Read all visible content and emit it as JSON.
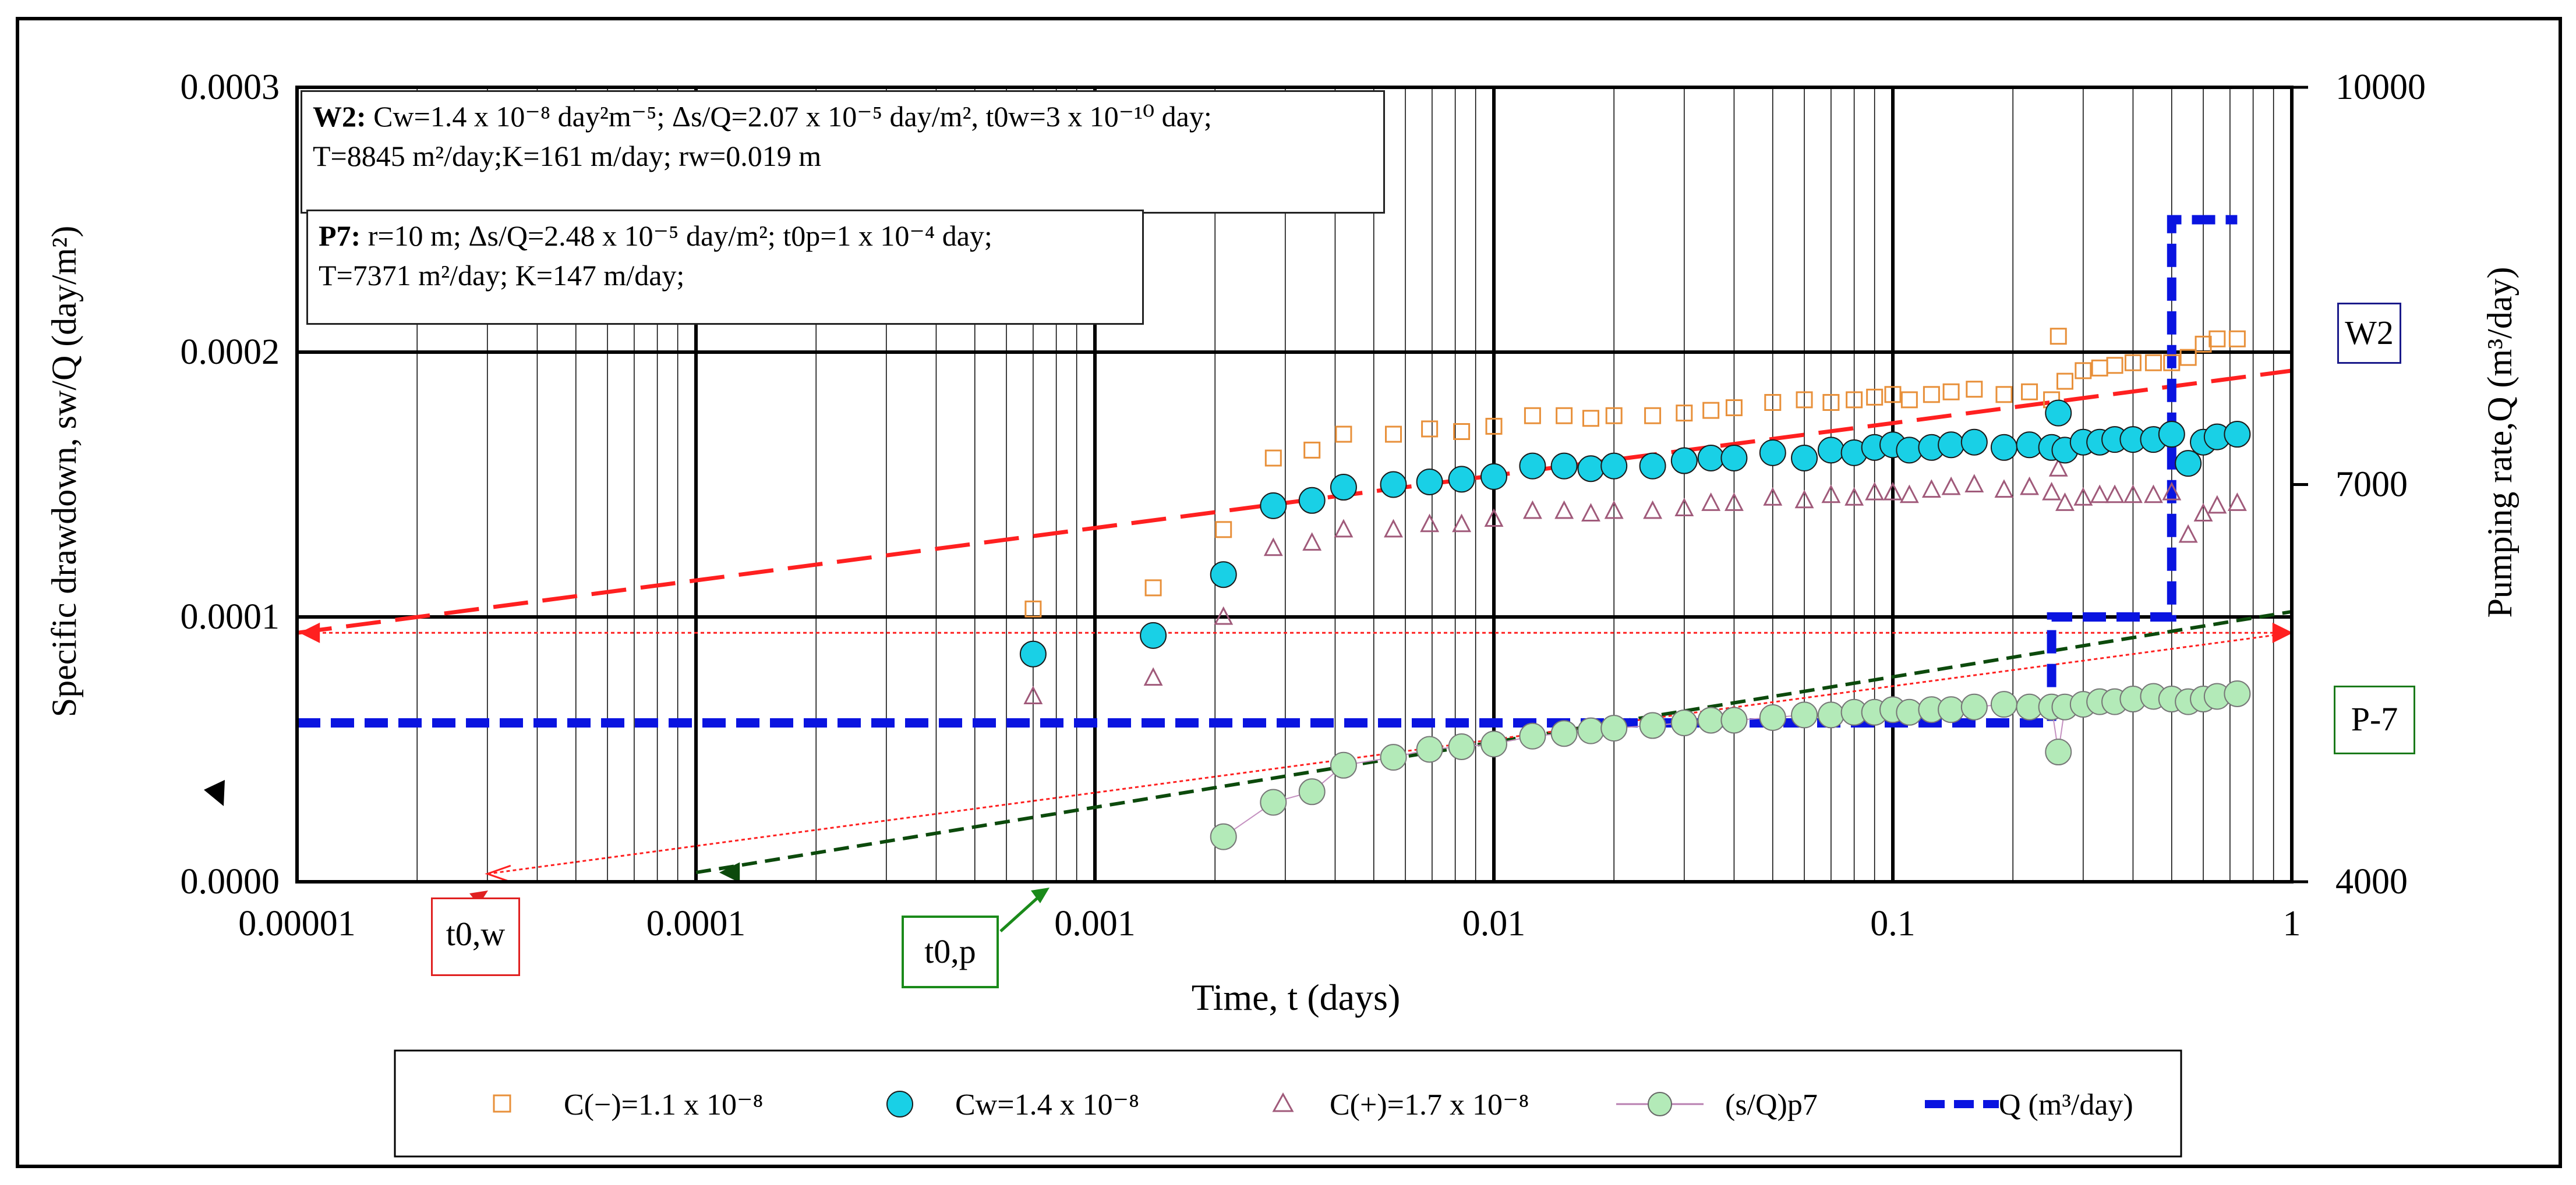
{
  "chart_data": {
    "type": "scatter",
    "xscale": "log",
    "xlim": [
      1e-05,
      1
    ],
    "ylim": [
      0,
      0.0003
    ],
    "y2lim": [
      4000,
      10000
    ],
    "xlabel": "Time, t (days)",
    "ylabel": "Specific drawdown, sw/Q (day/m²)",
    "y2label": "Pumping rate,Q (m³/day)",
    "x_ticks": [
      "0.00001",
      "0.0001",
      "0.001",
      "0.01",
      "0.1",
      "1"
    ],
    "y_ticks": [
      "0.0000",
      "0.0001",
      "0.0002",
      "0.0003"
    ],
    "y2_ticks": [
      "4000",
      "7000",
      "10000"
    ],
    "series": [
      {
        "name": "C(−)=1.1 x 10⁻⁸",
        "marker": "square-open",
        "color": "#e8903a",
        "x": [
          0.0007,
          0.0014,
          0.0021,
          0.0028,
          0.0035,
          0.0042,
          0.0056,
          0.0069,
          0.0083,
          0.01,
          0.0125,
          0.015,
          0.0175,
          0.02,
          0.025,
          0.03,
          0.035,
          0.04,
          0.05,
          0.06,
          0.07,
          0.08,
          0.09,
          0.1,
          0.11,
          0.125,
          0.14,
          0.16,
          0.19,
          0.22,
          0.25,
          0.26,
          0.27,
          0.3,
          0.33,
          0.36,
          0.4,
          0.45,
          0.5,
          0.55,
          0.6,
          0.65,
          0.73
        ],
        "y": [
          0.000103,
          0.000111,
          0.000133,
          0.00016,
          0.000163,
          0.000169,
          0.000169,
          0.000171,
          0.00017,
          0.000172,
          0.000176,
          0.000176,
          0.000175,
          0.000176,
          0.000176,
          0.000177,
          0.000178,
          0.000179,
          0.000181,
          0.000182,
          0.000181,
          0.000182,
          0.000183,
          0.000184,
          0.000182,
          0.000184,
          0.000185,
          0.000186,
          0.000184,
          0.000185,
          0.000182,
          0.000206,
          0.000189,
          0.000193,
          0.000194,
          0.000195,
          0.000196,
          0.000196,
          0.000196,
          0.000198,
          0.000203,
          0.000205,
          0.000205
        ]
      },
      {
        "name": "Cw=1.4 x 10⁻⁸",
        "marker": "circle-filled",
        "color": "#19d0e6",
        "x": [
          0.0007,
          0.0014,
          0.0021,
          0.0028,
          0.0035,
          0.0042,
          0.0056,
          0.0069,
          0.0083,
          0.01,
          0.0125,
          0.015,
          0.0175,
          0.02,
          0.025,
          0.03,
          0.035,
          0.04,
          0.05,
          0.06,
          0.07,
          0.08,
          0.09,
          0.1,
          0.11,
          0.125,
          0.14,
          0.16,
          0.19,
          0.22,
          0.25,
          0.26,
          0.27,
          0.3,
          0.33,
          0.36,
          0.4,
          0.45,
          0.5,
          0.55,
          0.6,
          0.65,
          0.73
        ],
        "y": [
          8.6e-05,
          9.3e-05,
          0.000116,
          0.000142,
          0.000144,
          0.000149,
          0.00015,
          0.000151,
          0.000152,
          0.000153,
          0.000157,
          0.000157,
          0.000156,
          0.000157,
          0.000157,
          0.000159,
          0.00016,
          0.00016,
          0.000162,
          0.00016,
          0.000163,
          0.000162,
          0.000164,
          0.000165,
          0.000163,
          0.000164,
          0.000165,
          0.000166,
          0.000164,
          0.000165,
          0.000164,
          0.000177,
          0.000163,
          0.000166,
          0.000166,
          0.000167,
          0.000167,
          0.000167,
          0.000169,
          0.000158,
          0.000166,
          0.000168,
          0.000169
        ]
      },
      {
        "name": "C(+)=1.7 x 10⁻⁸",
        "marker": "triangle-open",
        "color": "#a05a7a",
        "x": [
          0.0007,
          0.0014,
          0.0021,
          0.0028,
          0.0035,
          0.0042,
          0.0056,
          0.0069,
          0.0083,
          0.01,
          0.0125,
          0.015,
          0.0175,
          0.02,
          0.025,
          0.03,
          0.035,
          0.04,
          0.05,
          0.06,
          0.07,
          0.08,
          0.09,
          0.1,
          0.11,
          0.125,
          0.14,
          0.16,
          0.19,
          0.22,
          0.25,
          0.26,
          0.27,
          0.3,
          0.33,
          0.36,
          0.4,
          0.45,
          0.5,
          0.55,
          0.6,
          0.65,
          0.73
        ],
        "y": [
          7e-05,
          7.7e-05,
          0.0001,
          0.000126,
          0.000128,
          0.000133,
          0.000133,
          0.000135,
          0.000135,
          0.000137,
          0.00014,
          0.00014,
          0.000139,
          0.00014,
          0.00014,
          0.000141,
          0.000143,
          0.000143,
          0.000145,
          0.000144,
          0.000146,
          0.000145,
          0.000147,
          0.000147,
          0.000146,
          0.000148,
          0.000149,
          0.00015,
          0.000148,
          0.000149,
          0.000147,
          0.000156,
          0.000143,
          0.000145,
          0.000146,
          0.000146,
          0.000146,
          0.000146,
          0.000147,
          0.000131,
          0.000139,
          0.000142,
          0.000143
        ]
      },
      {
        "name": "(s/Q)p7",
        "marker": "circle-line",
        "color": "#b3eab8",
        "x": [
          0.0021,
          0.0028,
          0.0035,
          0.0042,
          0.0056,
          0.0069,
          0.0083,
          0.01,
          0.0125,
          0.015,
          0.0175,
          0.02,
          0.025,
          0.03,
          0.035,
          0.04,
          0.05,
          0.06,
          0.07,
          0.08,
          0.09,
          0.1,
          0.11,
          0.125,
          0.14,
          0.16,
          0.19,
          0.22,
          0.25,
          0.26,
          0.27,
          0.3,
          0.33,
          0.36,
          0.4,
          0.45,
          0.5,
          0.55,
          0.6,
          0.65,
          0.73
        ],
        "y": [
          1.7e-05,
          3e-05,
          3.4e-05,
          4.4e-05,
          4.7e-05,
          5e-05,
          5.1e-05,
          5.2e-05,
          5.5e-05,
          5.6e-05,
          5.7e-05,
          5.8e-05,
          5.9e-05,
          6e-05,
          6.1e-05,
          6.1e-05,
          6.2e-05,
          6.3e-05,
          6.3e-05,
          6.4e-05,
          6.4e-05,
          6.5e-05,
          6.4e-05,
          6.5e-05,
          6.5e-05,
          6.6e-05,
          6.7e-05,
          6.6e-05,
          6.6e-05,
          4.9e-05,
          6.6e-05,
          6.7e-05,
          6.8e-05,
          6.8e-05,
          6.9e-05,
          7e-05,
          6.9e-05,
          6.8e-05,
          6.9e-05,
          7e-05,
          7.1e-05
        ]
      },
      {
        "name": "Q (m³/day)",
        "marker": "dashed-line",
        "axis": "y2",
        "color": "#0a14e0",
        "x": [
          1e-05,
          0.25,
          0.25,
          0.5,
          0.5,
          0.73
        ],
        "y": [
          5200,
          5200,
          6000,
          6000,
          9000,
          9000
        ]
      }
    ],
    "fit_lines": [
      {
        "name": "W2 straight line",
        "color": "#ff2020",
        "x": [
          1e-05,
          1
        ],
        "y": [
          9.4e-05,
          0.000193
        ]
      },
      {
        "name": "W2 t0 line",
        "color": "#ff2020",
        "x": [
          1e-05,
          1
        ],
        "y": [
          9.4e-05,
          9.4e-05
        ]
      },
      {
        "name": "P7 straight line",
        "color": "#0c4a0c",
        "x": [
          0.0001,
          1
        ],
        "y": [
          3.5e-06,
          0.000102
        ]
      },
      {
        "name": "P7 extrapolation",
        "color": "#ff2020",
        "x": [
          3e-05,
          1
        ],
        "y": [
          3e-06,
          9.4e-05
        ]
      }
    ]
  },
  "annotations": {
    "w2": {
      "bold": "W2:",
      "line1": " Cw=1.4 x 10⁻⁸ day²m⁻⁵; Δs/Q=2.07 x 10⁻⁵ day/m², t0w=3 x 10⁻¹⁰ day;",
      "line2": "T=8845 m²/day;K=161 m/day; rw=0.019 m"
    },
    "p7": {
      "bold": "P7:",
      "line1": " r=10 m; Δs/Q=2.48 x 10⁻⁵ day/m²; t0p=1 x 10⁻⁴ day;",
      "line2": "T=7371 m²/day; K=147 m/day;"
    },
    "t0w": "t0,w",
    "t0p": "t0,p",
    "w2_label": "W2",
    "p7_label": "P-7"
  },
  "colors": {
    "orange": "#e8903a",
    "cyan": "#19d0e6",
    "purple": "#a05a7a",
    "green_marker": "#b3eab8",
    "blue_q": "#0a14e0",
    "red_line": "#ff2020",
    "dark_green": "#0c4a0c"
  }
}
